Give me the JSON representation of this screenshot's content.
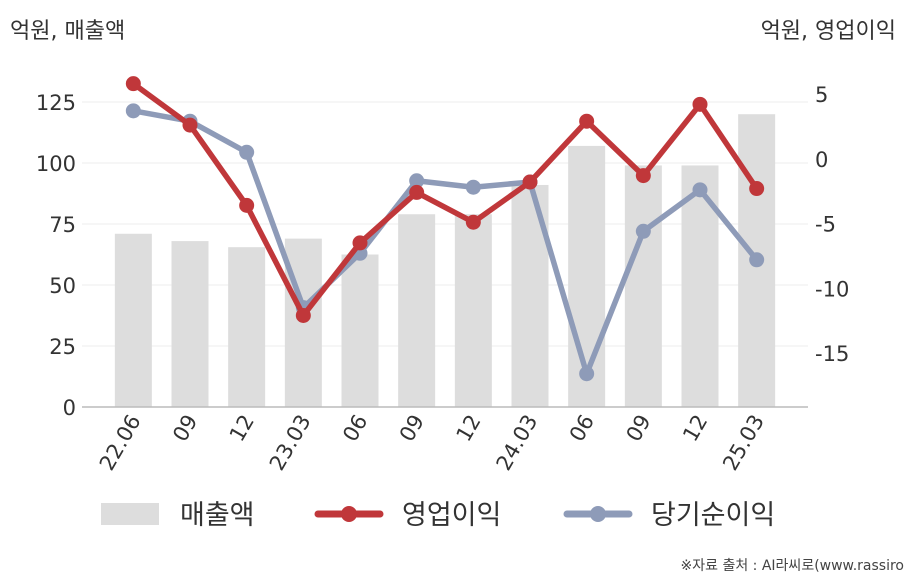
{
  "chart_data": {
    "type": "bar+line",
    "left_axis_title": "억원, 매출액",
    "right_axis_title": "억원, 영업이익",
    "categories": [
      "22.06",
      "09",
      "12",
      "23.03",
      "06",
      "09",
      "12",
      "24.03",
      "06",
      "09",
      "12",
      "25.03"
    ],
    "left_ticks": [
      "0",
      "25",
      "50",
      "75",
      "100",
      "125"
    ],
    "right_ticks": [
      "-15",
      "-10",
      "-5",
      "0",
      "5"
    ],
    "left_ylim": [
      0,
      140
    ],
    "right_ylim": [
      -19,
      6.2
    ],
    "bars": {
      "name": "매출액",
      "color": "#dddddd",
      "values": [
        71,
        68,
        65.5,
        69,
        62.5,
        79,
        79,
        91,
        107,
        99,
        99,
        120
      ]
    },
    "series": [
      {
        "name": "영업이익",
        "color": "#c0373a",
        "values": [
          5.8,
          2.6,
          -3.6,
          -12.1,
          -6.5,
          -2.6,
          -4.9,
          -1.8,
          2.9,
          -1.3,
          4.2,
          -2.3
        ]
      },
      {
        "name": "당기순이익",
        "color": "#8e9bb8",
        "values": [
          3.7,
          2.9,
          0.5,
          -11.5,
          -7.3,
          -1.7,
          -2.2,
          -1.8,
          -16.6,
          -5.6,
          -2.4,
          -7.8
        ]
      }
    ],
    "legend": [
      "매출액",
      "영업이익",
      "당기순이익"
    ],
    "legend_position": "bottom",
    "grid": true
  },
  "source_note": "※자료 출처 : AI라씨로(www.rassiro"
}
